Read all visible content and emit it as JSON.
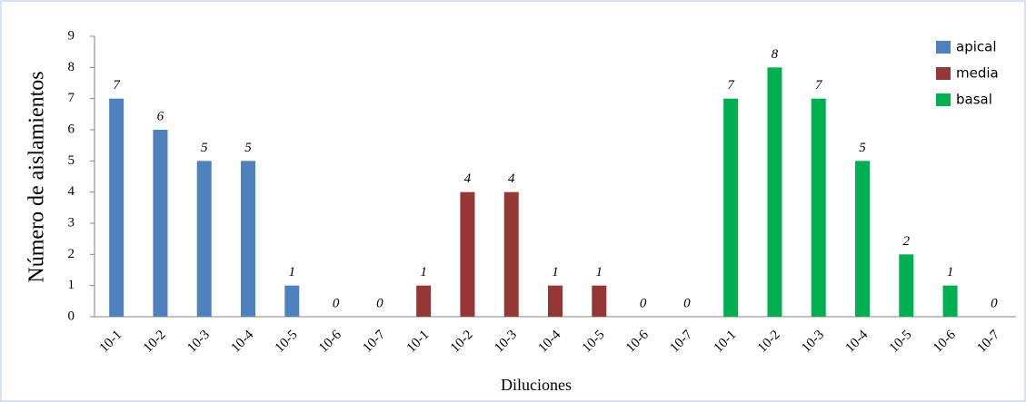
{
  "chart_data": {
    "type": "bar",
    "x_label": "Diluciones",
    "y_label": "Número de aislamientos",
    "categories": [
      "10-1",
      "10-2",
      "10-3",
      "10-4",
      "10-5",
      "10-6",
      "10-7",
      "10-1",
      "10-2",
      "10-3",
      "10-4",
      "10-5",
      "10-6",
      "10-7",
      "10-1",
      "10-2",
      "10-3",
      "10-4",
      "10-5",
      "10-6",
      "10-7"
    ],
    "series": [
      {
        "name": "apical",
        "color": "#4f81bd",
        "values": [
          7,
          6,
          5,
          5,
          1,
          0,
          0,
          null,
          null,
          null,
          null,
          null,
          null,
          null,
          null,
          null,
          null,
          null,
          null,
          null,
          null
        ]
      },
      {
        "name": "media",
        "color": "#953735",
        "values": [
          null,
          null,
          null,
          null,
          null,
          null,
          null,
          1,
          4,
          4,
          1,
          1,
          0,
          0,
          null,
          null,
          null,
          null,
          null,
          null,
          null
        ]
      },
      {
        "name": "basal",
        "color": "#00b050",
        "values": [
          null,
          null,
          null,
          null,
          null,
          null,
          null,
          null,
          null,
          null,
          null,
          null,
          null,
          null,
          7,
          8,
          7,
          5,
          2,
          1,
          0
        ]
      }
    ],
    "ylim": [
      0,
      9
    ],
    "yticks": [
      0,
      1,
      2,
      3,
      4,
      5,
      6,
      7,
      8,
      9
    ],
    "grid": false,
    "legend": "top-right"
  }
}
